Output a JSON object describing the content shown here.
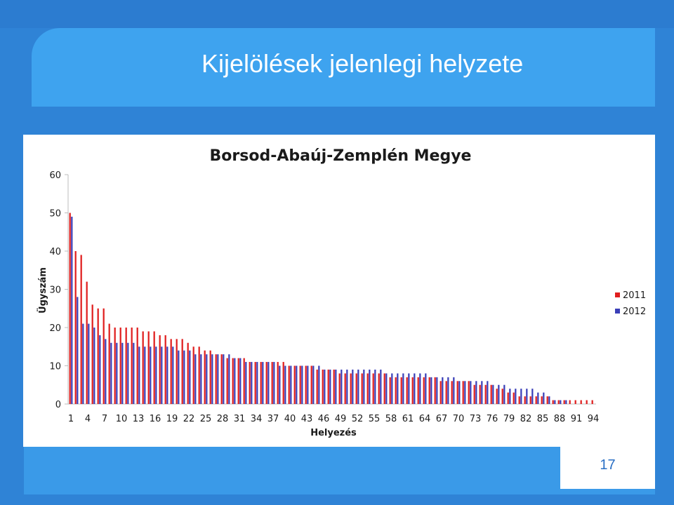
{
  "slide": {
    "title": "Kijelölések jelenlegi helyzete",
    "page_number": "17"
  },
  "colors": {
    "background": "#2f83d6",
    "header_band": "#3ea3ef",
    "series_2011": "#e01e1e",
    "series_2012": "#3a3fb8"
  },
  "chart_data": {
    "type": "bar",
    "title": "Borsod-Abaúj-Zemplén Megye",
    "xlabel": "Helyezés",
    "ylabel": "Ügyszám",
    "ylim": [
      0,
      60
    ],
    "yticks": [
      "0",
      "10",
      "20",
      "30",
      "40",
      "50",
      "60"
    ],
    "grid": false,
    "legend_position": "right",
    "x": [
      1,
      2,
      3,
      4,
      5,
      6,
      7,
      8,
      9,
      10,
      11,
      12,
      13,
      14,
      15,
      16,
      17,
      18,
      19,
      20,
      21,
      22,
      23,
      24,
      25,
      26,
      27,
      28,
      29,
      30,
      31,
      32,
      33,
      34,
      35,
      36,
      37,
      38,
      39,
      40,
      41,
      42,
      43,
      44,
      45,
      46,
      47,
      48,
      49,
      50,
      51,
      52,
      53,
      54,
      55,
      56,
      57,
      58,
      59,
      60,
      61,
      62,
      63,
      64,
      65,
      66,
      67,
      68,
      69,
      70,
      71,
      72,
      73,
      74,
      75,
      76,
      77,
      78,
      79,
      80,
      81,
      82,
      83,
      84,
      85,
      86,
      87,
      88,
      89,
      90,
      91,
      92,
      93,
      94
    ],
    "xtick_labels": [
      "1",
      "4",
      "7",
      "10",
      "13",
      "16",
      "19",
      "22",
      "25",
      "28",
      "31",
      "34",
      "37",
      "40",
      "43",
      "46",
      "49",
      "52",
      "55",
      "58",
      "61",
      "64",
      "67",
      "70",
      "73",
      "76",
      "79",
      "82",
      "85",
      "88",
      "91",
      "94"
    ],
    "series": [
      {
        "name": "2011",
        "color": "#e01e1e",
        "values": [
          50,
          40,
          39,
          32,
          26,
          25,
          25,
          21,
          20,
          20,
          20,
          20,
          20,
          19,
          19,
          19,
          18,
          18,
          17,
          17,
          17,
          16,
          15,
          15,
          14,
          14,
          13,
          13,
          12,
          12,
          12,
          12,
          11,
          11,
          11,
          11,
          11,
          11,
          11,
          10,
          10,
          10,
          10,
          10,
          9,
          9,
          9,
          9,
          8,
          8,
          8,
          8,
          8,
          8,
          8,
          8,
          8,
          7,
          7,
          7,
          7,
          7,
          7,
          7,
          7,
          7,
          6,
          6,
          6,
          6,
          6,
          6,
          5,
          5,
          5,
          5,
          4,
          4,
          3,
          3,
          2,
          2,
          2,
          2,
          2,
          2,
          1,
          1,
          1,
          1,
          1,
          1,
          1,
          1
        ]
      },
      {
        "name": "2012",
        "color": "#3a3fb8",
        "values": [
          49,
          28,
          21,
          21,
          20,
          18,
          17,
          16,
          16,
          16,
          16,
          16,
          15,
          15,
          15,
          15,
          15,
          15,
          15,
          14,
          14,
          14,
          13,
          13,
          13,
          13,
          13,
          13,
          13,
          12,
          12,
          11,
          11,
          11,
          11,
          11,
          11,
          10,
          10,
          10,
          10,
          10,
          10,
          10,
          10,
          9,
          9,
          9,
          9,
          9,
          9,
          9,
          9,
          9,
          9,
          9,
          8,
          8,
          8,
          8,
          8,
          8,
          8,
          8,
          7,
          7,
          7,
          7,
          7,
          6,
          6,
          6,
          6,
          6,
          6,
          5,
          5,
          5,
          4,
          4,
          4,
          4,
          4,
          3,
          3,
          2,
          1,
          1,
          1,
          0,
          0,
          0,
          0,
          0
        ]
      }
    ]
  }
}
